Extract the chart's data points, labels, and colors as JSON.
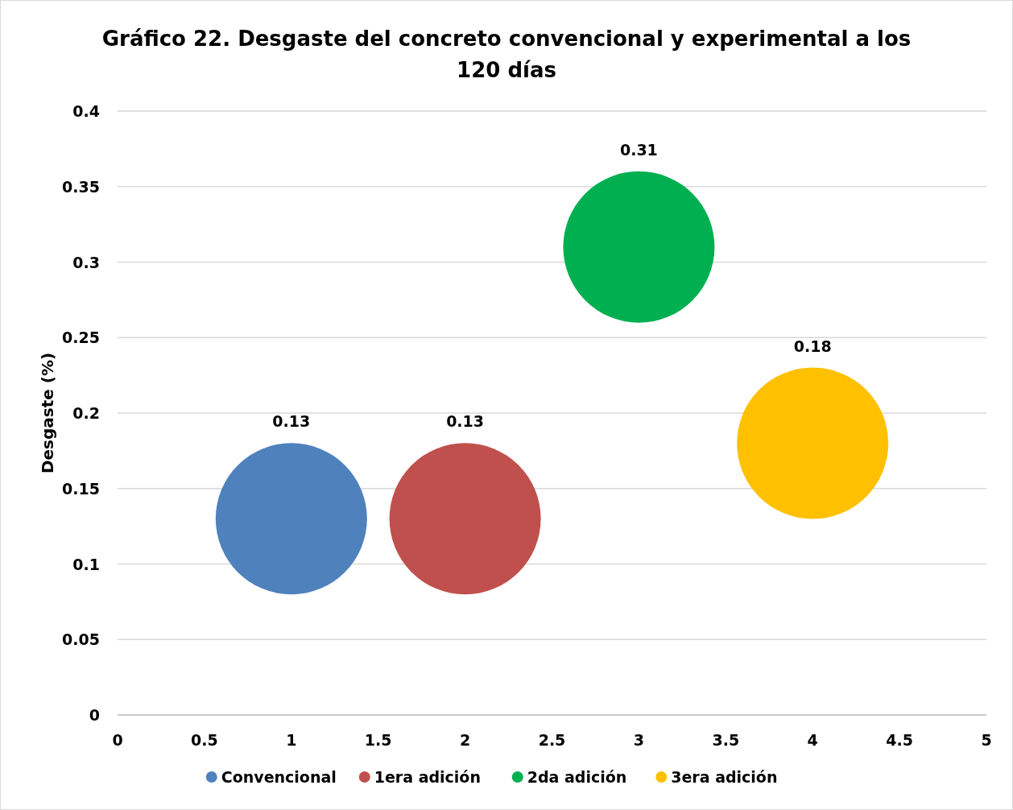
{
  "chart_data": {
    "type": "bubble",
    "title": "Gráfico 22. Desgaste del concreto convencional y experimental a los 120 días",
    "ylabel": "Desgaste (%)",
    "series": [
      {
        "name": "Convencional",
        "color": "#4f81bd",
        "x": [
          1
        ],
        "values": [
          0.13
        ],
        "sizes": [
          1
        ]
      },
      {
        "name": "1era adición",
        "color": "#c0504d",
        "x": [
          2
        ],
        "values": [
          0.13
        ],
        "sizes": [
          1
        ]
      },
      {
        "name": "2da adición",
        "color": "#00b050",
        "x": [
          3
        ],
        "values": [
          0.31
        ],
        "sizes": [
          1
        ]
      },
      {
        "name": "3era adición",
        "color": "#ffc000",
        "x": [
          4
        ],
        "values": [
          0.18
        ],
        "sizes": [
          1
        ]
      }
    ],
    "xlim": [
      0,
      5
    ],
    "xticks": [
      0,
      0.5,
      1,
      1.5,
      2,
      2.5,
      3,
      3.5,
      4,
      4.5,
      5
    ],
    "ylim": [
      0,
      0.4
    ],
    "yticks": [
      0,
      0.05,
      0.1,
      0.15,
      0.2,
      0.25,
      0.3,
      0.35,
      0.4
    ],
    "grid": "y",
    "legend": "bottom",
    "data_labels": true,
    "marker": "circle"
  }
}
